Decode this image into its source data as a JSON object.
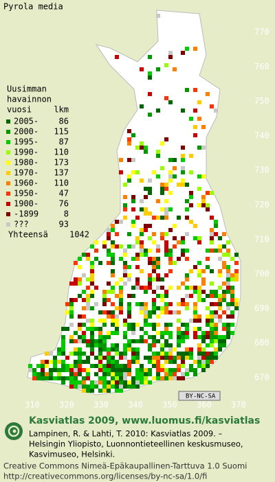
{
  "title": "Pyrola media",
  "legend": {
    "heading": [
      "Uusimman",
      "havainnon",
      "vuosi"
    ],
    "count_heading": "lkm",
    "entries": [
      {
        "label": "2005-",
        "count": 86,
        "color": "#006600"
      },
      {
        "label": "2000-",
        "count": 115,
        "color": "#009900"
      },
      {
        "label": "1995-",
        "count": 87,
        "color": "#00cc00"
      },
      {
        "label": "1990-",
        "count": 110,
        "color": "#99ff00"
      },
      {
        "label": "1980-",
        "count": 173,
        "color": "#ffff00"
      },
      {
        "label": "1970-",
        "count": 137,
        "color": "#ffcc00"
      },
      {
        "label": "1960-",
        "count": 110,
        "color": "#ff8000"
      },
      {
        "label": "1950-",
        "count": 47,
        "color": "#ff3300"
      },
      {
        "label": "1900-",
        "count": 76,
        "color": "#cc0000"
      },
      {
        "label": "-1899",
        "count": 8,
        "color": "#800000"
      },
      {
        "label": "???",
        "count": 93,
        "color": "#c8c8c8"
      }
    ],
    "total_label": "Yhteensä",
    "total": 1042
  },
  "map": {
    "yticks": [
      770,
      760,
      750,
      740,
      730,
      720,
      710,
      700,
      690,
      680,
      670
    ],
    "xticks": [
      310,
      320,
      330,
      340,
      350,
      360,
      370
    ],
    "license_badge": "BY-NC-SA"
  },
  "footer": {
    "heading": "Kasviatlas 2009, www.luomus.fi/kasviatlas",
    "citation": [
      "Lampinen, R. & Lahti, T. 2010: Kasviatlas 2009. –",
      "Helsingin Yliopisto, Luonnontieteellinen keskusmuseo,",
      "Kasvimuseo, Helsinki."
    ],
    "license": [
      "Creative Commons Nimeä-Epäkaupallinen-Tarttuva 1.0 Suomi",
      "http://creativecommons.org/licenses/by-nc-sa/1.0/fi"
    ]
  }
}
